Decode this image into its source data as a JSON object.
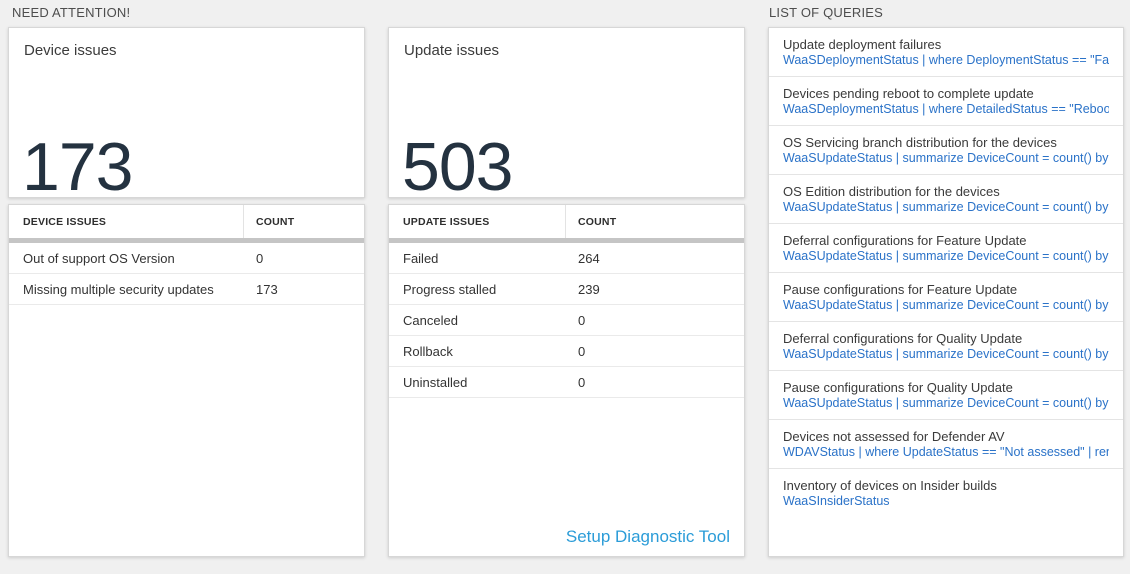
{
  "sections": {
    "need_attention": "NEED ATTENTION!",
    "list_of_queries": "LIST OF QUERIES"
  },
  "device_card": {
    "title": "Device issues",
    "count": "173"
  },
  "device_table": {
    "headers": [
      "DEVICE ISSUES",
      "COUNT"
    ],
    "rows": [
      [
        "Out of support OS Version",
        "0"
      ],
      [
        "Missing multiple security updates",
        "173"
      ]
    ]
  },
  "update_card": {
    "title": "Update issues",
    "count": "503"
  },
  "update_table": {
    "headers": [
      "UPDATE ISSUES",
      "COUNT"
    ],
    "rows": [
      [
        "Failed",
        "264"
      ],
      [
        "Progress stalled",
        "239"
      ],
      [
        "Canceled",
        "0"
      ],
      [
        "Rollback",
        "0"
      ],
      [
        "Uninstalled",
        "0"
      ]
    ]
  },
  "diagnostic_link": "Setup Diagnostic Tool",
  "queries": [
    {
      "title": "Update deployment failures",
      "query": "WaaSDeploymentStatus | where DeploymentStatus == \"Failed\" |..."
    },
    {
      "title": "Devices pending reboot to complete update",
      "query": "WaaSDeploymentStatus | where DetailedStatus == \"Reboot pend..."
    },
    {
      "title": "OS Servicing branch distribution for the devices",
      "query": "WaaSUpdateStatus | summarize DeviceCount = count() by OSSer..."
    },
    {
      "title": "OS Edition distribution for the devices",
      "query": "WaaSUpdateStatus | summarize DeviceCount = count() by OSEdit..."
    },
    {
      "title": "Deferral configurations for Feature Update",
      "query": "WaaSUpdateStatus | summarize DeviceCount = count() by Featur..."
    },
    {
      "title": "Pause configurations for Feature Update",
      "query": "WaaSUpdateStatus | summarize DeviceCount = count() by Featur..."
    },
    {
      "title": "Deferral configurations for Quality Update",
      "query": "WaaSUpdateStatus | summarize DeviceCount = count() by Qualit..."
    },
    {
      "title": "Pause configurations for Quality Update",
      "query": "WaaSUpdateStatus | summarize DeviceCount = count() by Qualit..."
    },
    {
      "title": "Devices not assessed for Defender AV",
      "query": "WDAVStatus | where UpdateStatus == \"Not assessed\" | render ta..."
    },
    {
      "title": "Inventory of devices on Insider builds",
      "query": "WaaSInsiderStatus"
    }
  ],
  "colors": {
    "page_background": "#f0f0f0",
    "panel_background": "#ffffff",
    "panel_border": "#d7d7d7",
    "metric_number": "#243240",
    "query_link_blue": "#2a72c8",
    "setup_link_blue": "#2b9cd8",
    "table_header_bar": "#c5c5c5"
  }
}
